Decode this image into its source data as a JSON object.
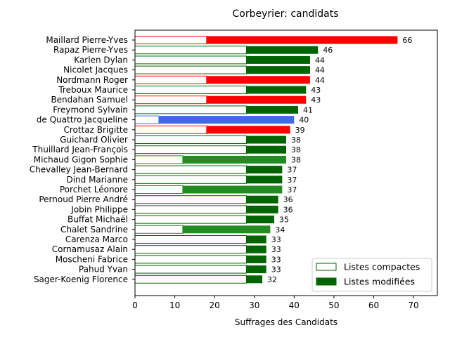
{
  "chart_data": {
    "type": "bar",
    "orientation": "horizontal",
    "title": "Corbeyrier: candidats",
    "xlabel": "Suffrages des Candidats",
    "ylabel": "",
    "xlim": [
      0,
      76
    ],
    "xticks": [
      0,
      10,
      20,
      30,
      40,
      50,
      60,
      70
    ],
    "grid": false,
    "legend_position": "bottom-right",
    "legend": [
      {
        "name": "Listes compactes",
        "fill": "#ffffff",
        "stroke": "#006400"
      },
      {
        "name": "Listes modifiées",
        "fill": "#006400",
        "stroke": "#006400"
      }
    ],
    "categories": [
      "Maillard Pierre-Yves",
      "Rapaz Pierre-Yves",
      "Karlen Dylan",
      "Nicolet Jacques",
      "Nordmann Roger",
      "Treboux Maurice",
      "Bendahan Samuel",
      "Freymond Sylvain",
      "de Quattro Jacqueline",
      "Crottaz Brigitte",
      "Guichard Olivier",
      "Thuillard Jean-François",
      "Michaud Gigon Sophie",
      "Chevalley Jean-Bernard",
      "Dind Marianne",
      "Porchet Léonore",
      "Pernoud Pierre André",
      "Jobin Philippe",
      "Buffat Michaël",
      "Chalet Sandrine",
      "Carenza Marco",
      "Cornamusaz Alain",
      "Moscheni Fabrice",
      "Pahud Yvan",
      "Sager-Koenig Florence"
    ],
    "values": [
      66,
      46,
      44,
      44,
      44,
      43,
      43,
      41,
      40,
      39,
      38,
      38,
      38,
      37,
      37,
      37,
      36,
      36,
      35,
      34,
      33,
      33,
      33,
      33,
      32
    ],
    "series": [
      {
        "name": "Listes compactes",
        "values": [
          18,
          28,
          28,
          28,
          18,
          28,
          18,
          28,
          6,
          18,
          28,
          28,
          12,
          28,
          28,
          12,
          28,
          28,
          28,
          12,
          28,
          28,
          28,
          28,
          28
        ]
      },
      {
        "name": "Listes modifiées",
        "values": [
          48,
          18,
          16,
          16,
          26,
          15,
          25,
          13,
          34,
          21,
          10,
          10,
          26,
          9,
          9,
          25,
          8,
          8,
          7,
          22,
          5,
          5,
          5,
          5,
          4
        ]
      }
    ],
    "colors": [
      "#ff0000",
      "#006400",
      "#006400",
      "#006400",
      "#ff0000",
      "#006400",
      "#ff0000",
      "#006400",
      "#4169e1",
      "#ff0000",
      "#006400",
      "#006400",
      "#228b22",
      "#006400",
      "#006400",
      "#228b22",
      "#006400",
      "#006400",
      "#006400",
      "#228b22",
      "#006400",
      "#006400",
      "#006400",
      "#006400",
      "#006400"
    ]
  }
}
